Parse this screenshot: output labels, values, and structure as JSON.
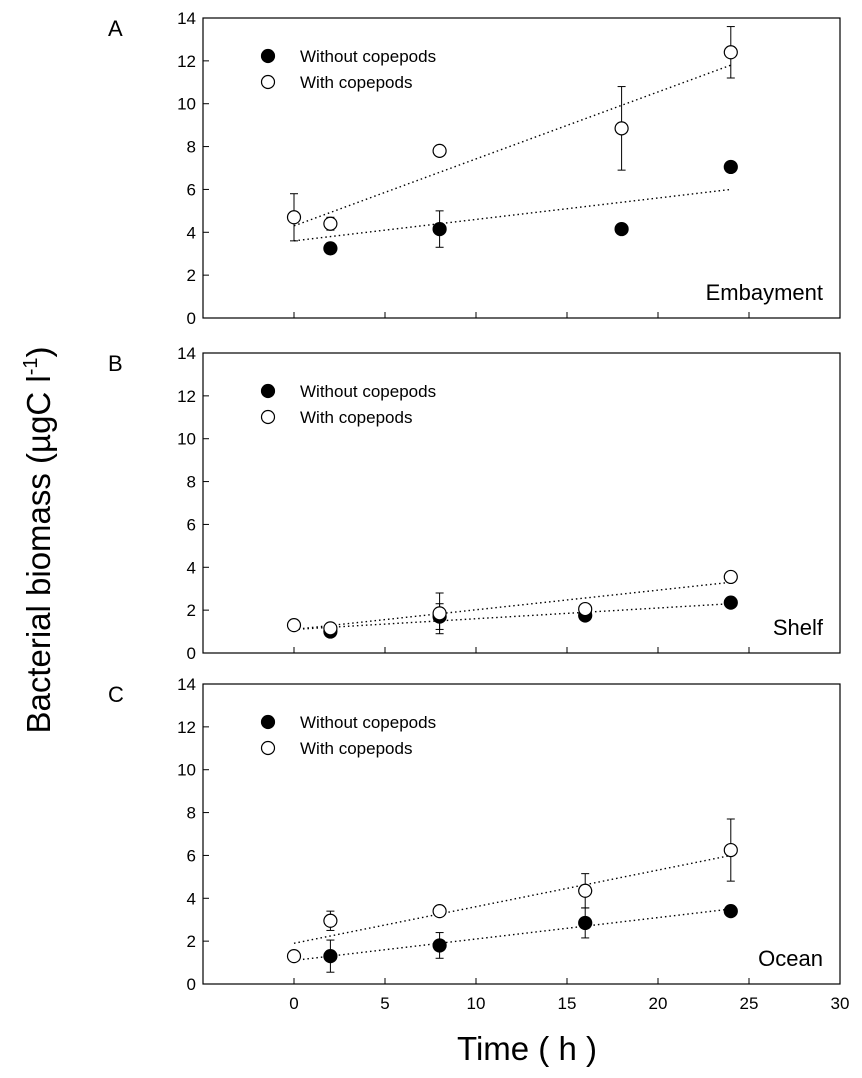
{
  "figure": {
    "ylabel_main": "Bacterial biomass (µgC l",
    "ylabel_sup": "-1",
    "ylabel_close": ")",
    "xlabel": "Time ( h )"
  },
  "colors": {
    "without": "#000000",
    "with": "#ffffff",
    "axis": "#000000"
  },
  "chart_data": [
    {
      "type": "scatter",
      "panel_letter": "A",
      "location": "Embayment",
      "xlim": [
        -5,
        30
      ],
      "ylim": [
        0,
        14
      ],
      "xticks": [
        0,
        5,
        10,
        15,
        20,
        25,
        30
      ],
      "yticks": [
        0,
        2,
        4,
        6,
        8,
        10,
        12,
        14
      ],
      "legend_position": "top-left",
      "series": [
        {
          "name": "Without copepods",
          "marker": "filled-circle",
          "x": [
            2,
            8,
            18,
            24
          ],
          "y": [
            3.25,
            4.15,
            4.15,
            7.05
          ],
          "err": [
            0,
            0.85,
            0,
            0
          ],
          "trend": {
            "x": [
              0,
              24
            ],
            "y": [
              3.6,
              6.0
            ]
          }
        },
        {
          "name": "With copepods",
          "marker": "open-circle",
          "x": [
            0,
            2,
            8,
            18,
            24
          ],
          "y": [
            4.7,
            4.4,
            7.8,
            8.85,
            12.4
          ],
          "err": [
            1.1,
            0.3,
            0,
            1.95,
            1.2
          ],
          "trend": {
            "x": [
              0,
              24
            ],
            "y": [
              4.3,
              11.8
            ]
          }
        }
      ]
    },
    {
      "type": "scatter",
      "panel_letter": "B",
      "location": "Shelf",
      "xlim": [
        -5,
        30
      ],
      "ylim": [
        0,
        14
      ],
      "xticks": [
        0,
        5,
        10,
        15,
        20,
        25,
        30
      ],
      "yticks": [
        0,
        2,
        4,
        6,
        8,
        10,
        12,
        14
      ],
      "legend_position": "top-left",
      "series": [
        {
          "name": "Without copepods",
          "marker": "filled-circle",
          "x": [
            2,
            8,
            16,
            24
          ],
          "y": [
            1.0,
            1.7,
            1.75,
            2.35
          ],
          "err": [
            0,
            0.6,
            0,
            0
          ],
          "trend": {
            "x": [
              0,
              24
            ],
            "y": [
              1.1,
              2.3
            ]
          }
        },
        {
          "name": "With copepods",
          "marker": "open-circle",
          "x": [
            0,
            2,
            8,
            16,
            24
          ],
          "y": [
            1.3,
            1.15,
            1.85,
            2.05,
            3.55
          ],
          "err": [
            0,
            0,
            0.95,
            0,
            0
          ],
          "trend": {
            "x": [
              0,
              24
            ],
            "y": [
              1.1,
              3.3
            ]
          }
        }
      ]
    },
    {
      "type": "scatter",
      "panel_letter": "C",
      "location": "Ocean",
      "xlim": [
        -5,
        30
      ],
      "ylim": [
        0,
        14
      ],
      "xticks": [
        0,
        5,
        10,
        15,
        20,
        25,
        30
      ],
      "yticks": [
        0,
        2,
        4,
        6,
        8,
        10,
        12,
        14
      ],
      "legend_position": "top-left",
      "series": [
        {
          "name": "Without copepods",
          "marker": "filled-circle",
          "x": [
            2,
            8,
            16,
            24
          ],
          "y": [
            1.3,
            1.8,
            2.85,
            3.4
          ],
          "err": [
            0.75,
            0.6,
            0.7,
            0
          ],
          "trend": {
            "x": [
              0,
              24
            ],
            "y": [
              1.1,
              3.5
            ]
          }
        },
        {
          "name": "With copepods",
          "marker": "open-circle",
          "x": [
            0,
            2,
            8,
            16,
            24
          ],
          "y": [
            1.3,
            2.95,
            3.4,
            4.35,
            6.25
          ],
          "err": [
            0,
            0.45,
            0,
            0.8,
            1.45
          ],
          "trend": {
            "x": [
              0,
              24
            ],
            "y": [
              1.9,
              6.0
            ]
          }
        }
      ]
    }
  ]
}
